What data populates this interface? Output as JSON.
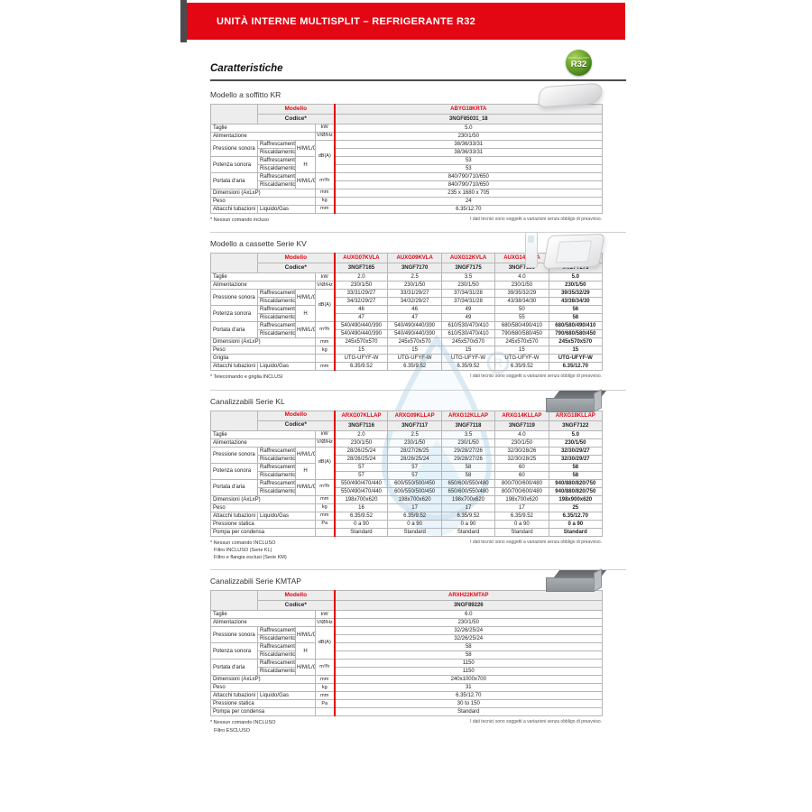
{
  "page": {
    "banner": "UNITÀ INTERNE MULTISPLIT – REFRIGERANTE R32",
    "title": "Caratteristiche",
    "badge": {
      "line1": "REFRIGERANT",
      "line2": "R32"
    },
    "header_labels": {
      "modello": "Modello",
      "codice": "Codice*"
    },
    "tech_note": "I dati tecnici sono soggetti a variazioni senza obbligo di preavviso."
  },
  "colors": {
    "accent_red": "#e30613",
    "badge_green": "#5b9722",
    "header_gray": "#ededed",
    "border_gray": "#b7b7b7",
    "dark_corner": "#4b4b4f"
  },
  "sections": [
    {
      "title": "Modello a soffitto KR",
      "image": "ceiling-unit",
      "models": [
        "ABYG18KRTA"
      ],
      "codes": [
        "3NGF85031_18"
      ],
      "bold_col": null,
      "rows": [
        {
          "label": "Taglie",
          "label_cs": 3,
          "unit": "kW",
          "values": [
            "5.0"
          ]
        },
        {
          "label": "Alimentazione",
          "label_cs": 3,
          "unit": "V/Ø/Hz",
          "values": [
            "230/1/50"
          ]
        },
        {
          "label": "Pressione sonora",
          "label_rs": 2,
          "sub": "Raffrescamento",
          "grade": "H/M/L/Q",
          "grade_rs": 2,
          "unit": "dB(A)",
          "unit_rs": 4,
          "values": [
            "38/36/33/31"
          ]
        },
        {
          "sub": "Riscaldamento",
          "values": [
            "38/36/33/31"
          ]
        },
        {
          "label": "Potenza sonora",
          "label_rs": 2,
          "sub": "Raffrescamento",
          "grade": "H",
          "grade_rs": 2,
          "values": [
            "53"
          ]
        },
        {
          "sub": "Riscaldamento",
          "values": [
            "53"
          ]
        },
        {
          "label": "Portata d'aria",
          "label_rs": 2,
          "sub": "Raffrescamento",
          "grade": "H/M/L/Q",
          "grade_rs": 2,
          "unit": "m³/h",
          "unit_rs": 2,
          "values": [
            "840/790/710/650"
          ]
        },
        {
          "sub": "Riscaldamento",
          "values": [
            "840/790/710/650"
          ]
        },
        {
          "label": "Dimensioni (AxLxP)",
          "label_cs": 3,
          "unit": "mm",
          "values": [
            "235 x 1680 x 705"
          ]
        },
        {
          "label": "Peso",
          "label_cs": 3,
          "unit": "kg",
          "values": [
            "24"
          ]
        },
        {
          "label": "Attacchi tubazioni",
          "sub": "Liquido/Gas",
          "sub_cs": 2,
          "unit": "mm",
          "values": [
            "6.35/12.70"
          ]
        }
      ],
      "footnotes": [
        "* Nessun comando incluso"
      ]
    },
    {
      "title": "Modello a cassette Serie KV",
      "image": "cassette-unit-with-remote",
      "models": [
        "AUXG07KVLA",
        "AUXG09KVLA",
        "AUXG12KVLA",
        "AUXG14KVLA",
        "AUXG18KVLA"
      ],
      "codes": [
        "3NGF7165",
        "3NGF7170",
        "3NGF7175",
        "3NGF7180",
        "3NGF7275"
      ],
      "bold_col": 4,
      "rows": [
        {
          "label": "Taglie",
          "label_cs": 3,
          "unit": "kW",
          "values": [
            "2.0",
            "2.5",
            "3.5",
            "4.0",
            "5.0"
          ]
        },
        {
          "label": "Alimentazione",
          "label_cs": 3,
          "unit": "V/Ø/Hz",
          "values": [
            "230/1/50",
            "230/1/50",
            "230/1/50",
            "230/1/50",
            "230/1/50"
          ]
        },
        {
          "label": "Pressione sonora",
          "label_rs": 2,
          "sub": "Raffrescamento",
          "grade": "H/M/L/Q",
          "grade_rs": 2,
          "unit": "dB(A)",
          "unit_rs": 4,
          "values": [
            "33/31/29/27",
            "33/31/29/27",
            "37/34/31/28",
            "39/35/32/29",
            "39/35/32/29"
          ]
        },
        {
          "sub": "Riscaldamento",
          "values": [
            "34/32/29/27",
            "34/32/29/27",
            "37/34/31/28",
            "43/38/34/30",
            "43/38/34/30"
          ]
        },
        {
          "label": "Potenza sonora",
          "label_rs": 2,
          "sub": "Raffrescamento",
          "grade": "H",
          "grade_rs": 2,
          "values": [
            "46",
            "46",
            "49",
            "50",
            "56"
          ]
        },
        {
          "sub": "Riscaldamento",
          "values": [
            "47",
            "47",
            "49",
            "55",
            "58"
          ]
        },
        {
          "label": "Portata d'aria",
          "label_rs": 2,
          "sub": "Raffrescamento",
          "grade": "H/M/L/Q",
          "grade_rs": 2,
          "unit": "m³/h",
          "unit_rs": 2,
          "values": [
            "540/490/440/390",
            "540/490/440/390",
            "610/530/470/410",
            "680/580/490/410",
            "680/580/490/410"
          ]
        },
        {
          "sub": "Riscaldamento",
          "values": [
            "540/490/440/390",
            "540/490/440/390",
            "610/530/470/410",
            "790/680/580/450",
            "790/680/580/450"
          ]
        },
        {
          "label": "Dimensioni (AxLxP)",
          "label_cs": 3,
          "unit": "mm",
          "values": [
            "245x570x570",
            "245x570x570",
            "245x570x570",
            "245x570x570",
            "245x570x570"
          ]
        },
        {
          "label": "Peso",
          "label_cs": 3,
          "unit": "kg",
          "values": [
            "15",
            "15",
            "15",
            "15",
            "15"
          ]
        },
        {
          "label": "Griglia",
          "label_cs": 3,
          "unit": "",
          "values": [
            "UTG-UFYF-W",
            "UTG-UFYF-W",
            "UTG-UFYF-W",
            "UTG-UFYF-W",
            "UTG-UFYF-W"
          ]
        },
        {
          "label": "Attacchi tubazioni",
          "sub": "Liquido/Gas",
          "sub_cs": 2,
          "unit": "mm",
          "values": [
            "6.35/9.52",
            "6.35/9.52",
            "6.35/9.52",
            "6.35/9.52",
            "6.35/12.70"
          ]
        }
      ],
      "footnotes": [
        "* Telecomando e griglia INCLUSI"
      ]
    },
    {
      "title": "Canalizzabili Serie KL",
      "image": "duct-unit",
      "models": [
        "ARXG07KLLAP",
        "ARXG09KLLAP",
        "ARXG12KLLAP",
        "ARXG14KLLAP",
        "ARXG18KLLAP"
      ],
      "codes": [
        "3NGF7116",
        "3NGF7117",
        "3NGF7118",
        "3NGF7119",
        "3NGF7122"
      ],
      "bold_col": 4,
      "rows": [
        {
          "label": "Taglie",
          "label_cs": 3,
          "unit": "kW",
          "values": [
            "2.0",
            "2.5",
            "3.5",
            "4.0",
            "5.0"
          ]
        },
        {
          "label": "Alimentazione",
          "label_cs": 3,
          "unit": "V/Ø/Hz",
          "values": [
            "230/1/50",
            "230/1/50",
            "230/1/50",
            "230/1/50",
            "230/1/50"
          ]
        },
        {
          "label": "Pressione sonora",
          "label_rs": 2,
          "sub": "Raffrescamento",
          "grade": "H/M/L/Q",
          "grade_rs": 2,
          "unit": "dB(A)",
          "unit_rs": 4,
          "values": [
            "28/26/25/24",
            "28/27/26/25",
            "29/28/27/26",
            "32/30/28/26",
            "32/30/29/27"
          ]
        },
        {
          "sub": "Riscaldamento",
          "values": [
            "28/26/25/24",
            "28/26/25/24",
            "29/28/27/26",
            "32/30/28/25",
            "32/30/29/27"
          ]
        },
        {
          "label": "Potenza sonora",
          "label_rs": 2,
          "sub": "Raffrescamento",
          "grade": "H",
          "grade_rs": 2,
          "values": [
            "57",
            "57",
            "58",
            "60",
            "58"
          ]
        },
        {
          "sub": "Riscaldamento",
          "values": [
            "57",
            "57",
            "58",
            "60",
            "58"
          ]
        },
        {
          "label": "Portata d'aria",
          "label_rs": 2,
          "sub": "Raffrescamento",
          "grade": "H/M/L/Q",
          "grade_rs": 2,
          "unit": "m³/h",
          "unit_rs": 2,
          "values": [
            "550/490/470/440",
            "600/550/500/450",
            "650/600/550/480",
            "800/700/600/480",
            "940/880/820/750"
          ]
        },
        {
          "sub": "Riscaldamento",
          "values": [
            "550/490/470/440",
            "600/550/500/450",
            "650/600/550/480",
            "800/700/600/480",
            "940/880/820/750"
          ]
        },
        {
          "label": "Dimensioni (AxLxP)",
          "label_cs": 3,
          "unit": "mm",
          "values": [
            "198x700x620",
            "198x700x620",
            "198x700x620",
            "198x700x620",
            "198x900x620"
          ]
        },
        {
          "label": "Peso",
          "label_cs": 3,
          "unit": "kg",
          "values": [
            "16",
            "17",
            "17",
            "17",
            "25"
          ]
        },
        {
          "label": "Attacchi tubazioni",
          "sub": "Liquido/Gas",
          "sub_cs": 2,
          "unit": "mm",
          "values": [
            "6.35/9.52",
            "6.35/9.52",
            "6.35/9.52",
            "6.35/9.52",
            "6.35/12.70"
          ]
        },
        {
          "label": "Pressione statica",
          "label_cs": 3,
          "unit": "Pa",
          "values": [
            "0 a 90",
            "0 a 90",
            "0 a 90",
            "0 a 90",
            "0 a 90"
          ]
        },
        {
          "label": "Pompa per condensa",
          "label_cs": 3,
          "unit": "",
          "values": [
            "Standard",
            "Standard",
            "Standard",
            "Standard",
            "Standard"
          ]
        }
      ],
      "footnotes": [
        "* Nessun comando INCLUSO",
        "Filtro INCLUSO (Serie KL)",
        "Filtro e flangia esclusi (Serie KM)"
      ]
    },
    {
      "title": "Canalizzabili Serie KMTAP",
      "image": "duct-unit",
      "models": [
        "ARXH22KMTAP"
      ],
      "codes": [
        "3NGF89226"
      ],
      "bold_col": null,
      "rows": [
        {
          "label": "Taglie",
          "label_cs": 3,
          "unit": "kW",
          "values": [
            "6.0"
          ]
        },
        {
          "label": "Alimentazione",
          "label_cs": 3,
          "unit": "V/Ø/Hz",
          "values": [
            "230/1/50"
          ]
        },
        {
          "label": "Pressione sonora",
          "label_rs": 2,
          "sub": "Raffrescamento",
          "grade": "H/M/L/Q",
          "grade_rs": 2,
          "unit": "dB(A)",
          "unit_rs": 4,
          "values": [
            "32/26/25/24"
          ]
        },
        {
          "sub": "Riscaldamento",
          "values": [
            "32/26/25/24"
          ]
        },
        {
          "label": "Potenza sonora",
          "label_rs": 2,
          "sub": "Raffrescamento",
          "grade": "H",
          "grade_rs": 2,
          "values": [
            "58"
          ]
        },
        {
          "sub": "Riscaldamento",
          "values": [
            "58"
          ]
        },
        {
          "label": "Portata d'aria",
          "label_rs": 2,
          "sub": "Raffrescamento",
          "grade": "H/M/L/Q",
          "grade_rs": 2,
          "unit": "m³/h",
          "unit_rs": 2,
          "values": [
            "1150"
          ]
        },
        {
          "sub": "Riscaldamento",
          "values": [
            "1150"
          ]
        },
        {
          "label": "Dimensioni (AxLxP)",
          "label_cs": 3,
          "unit": "mm",
          "values": [
            "240x1000x700"
          ]
        },
        {
          "label": "Peso",
          "label_cs": 3,
          "unit": "kg",
          "values": [
            "31"
          ]
        },
        {
          "label": "Attacchi tubazioni",
          "sub": "Liquido/Gas",
          "sub_cs": 2,
          "unit": "mm",
          "values": [
            "6.35/12.70"
          ]
        },
        {
          "label": "Pressione statica",
          "label_cs": 3,
          "unit": "Pa",
          "values": [
            "30 to 150"
          ]
        },
        {
          "label": "Pompa per condensa",
          "label_cs": 3,
          "unit": "",
          "values": [
            "Standard"
          ]
        }
      ],
      "footnotes": [
        "* Nessun comando INCLUSO",
        "Filtro ESCLUSO"
      ]
    }
  ]
}
